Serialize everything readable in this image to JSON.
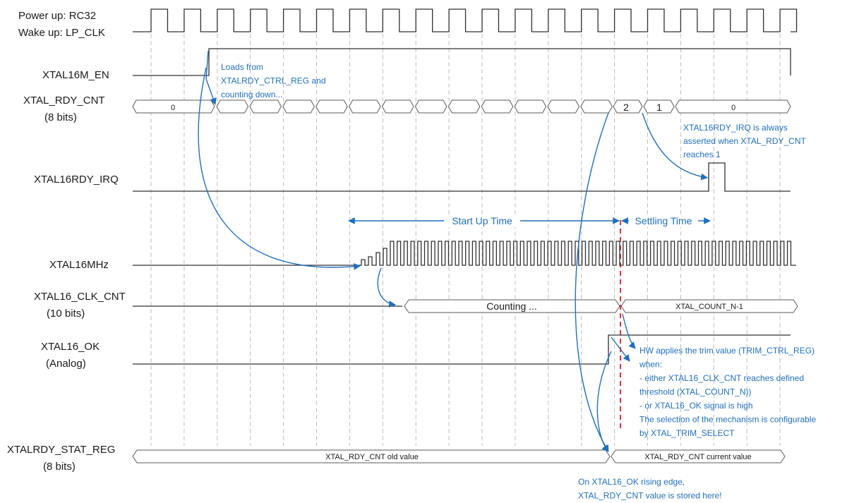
{
  "signals": {
    "clock_line1": "Power up: RC32",
    "clock_line2": "Wake up: LP_CLK",
    "xtal16m_en": "XTAL16M_EN",
    "xtal_rdy_cnt_line1": "XTAL_RDY_CNT",
    "xtal_rdy_cnt_line2": "(8 bits)",
    "xtal16rdy_irq": "XTAL16RDY_IRQ",
    "xtal16mhz": "XTAL16MHz",
    "xtal16_clk_cnt_line1": "XTAL16_CLK_CNT",
    "xtal16_clk_cnt_line2": "(10 bits)",
    "xtal16_ok_line1": "XTAL16_OK",
    "xtal16_ok_line2": "(Analog)",
    "xtalrdy_stat_reg_line1": "XTALRDY_STAT_REG",
    "xtalrdy_stat_reg_line2": "(8 bits)"
  },
  "bus_values": {
    "rdy_cnt_initial": "0",
    "rdy_cnt_two": "2",
    "rdy_cnt_one": "1",
    "rdy_cnt_final": "0",
    "clk_cnt_counting": "Counting ...",
    "clk_cnt_final": "XTAL_COUNT_N-1",
    "stat_old": "XTAL_RDY_CNT old value",
    "stat_current": "XTAL_RDY_CNT current value"
  },
  "intervals": {
    "start_up": "Start Up Time",
    "settling": "Settling Time"
  },
  "annotations": {
    "loads": [
      "Loads from",
      "XTALRDY_CTRL_REG and",
      "counting down..."
    ],
    "irq": [
      "XTAL16RDY_IRQ is always",
      "asserted when XTAL_RDY_CNT",
      "reaches 1"
    ],
    "trim": [
      "HW applies the trim value (TRIM_CTRL_REG)",
      "when:",
      "- either XTAL16_CLK_CNT reaches defined",
      "threshold (XTAL_COUNT_N))",
      "- or XTAL16_OK signal is high",
      "The selection of the mechanism is configurable",
      "by XTAL_TRIM_SELECT"
    ],
    "store": [
      "On XTAL16_OK rising edge,",
      "XTAL_RDY_CNT value is stored here!"
    ]
  },
  "colors": {
    "annotation": "#1f6fbf",
    "marker": "#e0201c",
    "waveform": "#303030"
  }
}
